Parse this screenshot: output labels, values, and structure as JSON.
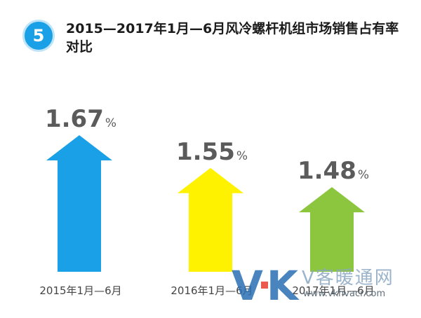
{
  "header": {
    "badge": "5",
    "title": "2015—2017年1月—6月风冷螺杆机组市场销售占有率对比"
  },
  "chart_data": {
    "type": "bar",
    "title": "2015—2017年1月—6月风冷螺杆机组市场销售占有率对比",
    "categories": [
      "2015年1月—6月",
      "2016年1月—6月",
      "2017年1月—6月"
    ],
    "values": [
      1.67,
      1.55,
      1.48
    ],
    "value_labels": [
      "1.67",
      "1.55",
      "1.48"
    ],
    "unit": "%",
    "colors": [
      "#1aa0e6",
      "#fff200",
      "#8cc63f"
    ],
    "xlabel": "",
    "ylabel": "",
    "grid": false,
    "legend": "none"
  },
  "watermark": {
    "logo": "VK",
    "text": "V客暖通网",
    "url": "www.vkhvacr.com"
  }
}
